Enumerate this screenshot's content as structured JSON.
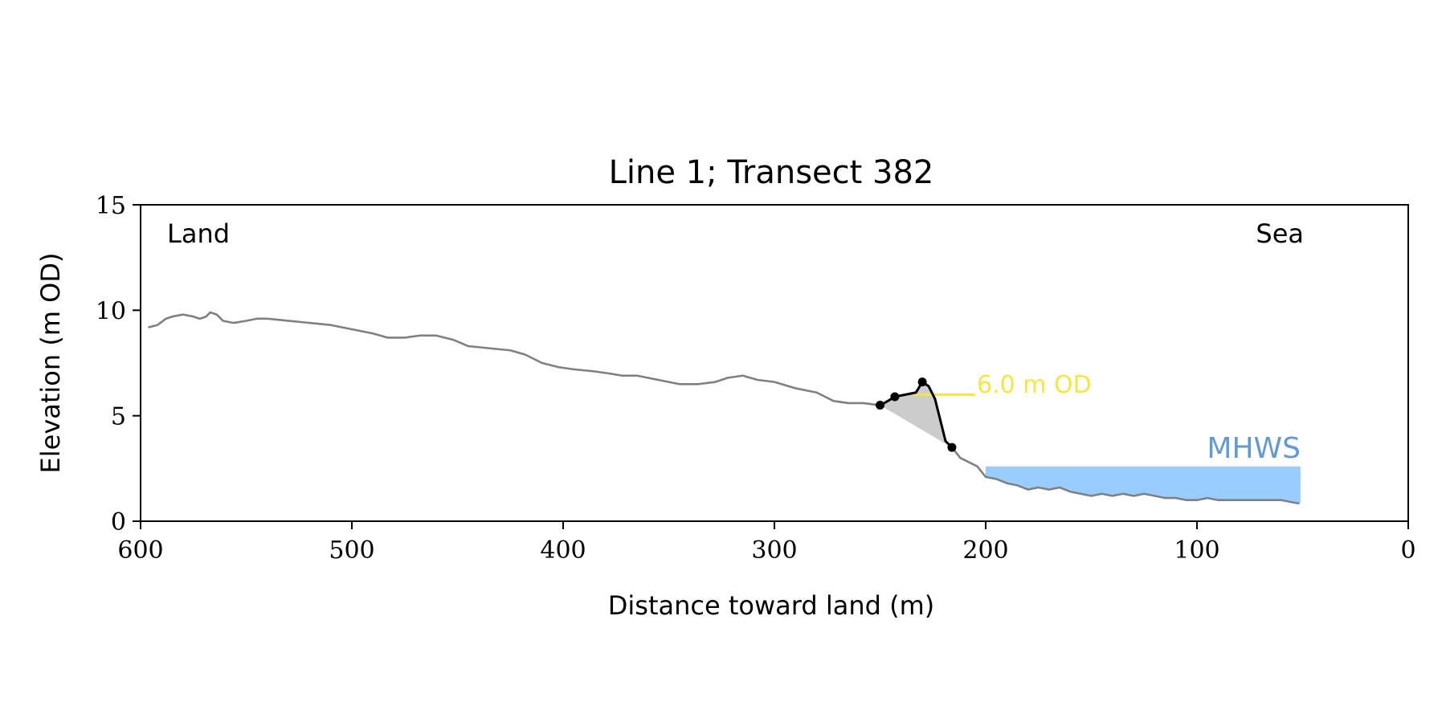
{
  "chart_data": {
    "type": "line",
    "title": "Line 1; Transect 382",
    "xlabel": "Distance toward land (m)",
    "ylabel": "Elevation (m OD)",
    "xlim": [
      600,
      0
    ],
    "ylim": [
      0,
      15
    ],
    "x_reversed": true,
    "xticks": [
      600,
      500,
      400,
      300,
      200,
      100,
      0
    ],
    "yticks": [
      0,
      5,
      10,
      15
    ],
    "grid": false,
    "corner_labels": {
      "left": "Land",
      "right": "Sea"
    },
    "colors": {
      "profile": "#808080",
      "feature": "#000000",
      "fill": "#cccccc",
      "od_line": "#f5e642",
      "water": "#99ccff",
      "mhws_text": "#6699cc"
    },
    "series": [
      {
        "points": [
          [
            596,
            9.2
          ],
          [
            592,
            9.3
          ],
          [
            588,
            9.6
          ],
          [
            585,
            9.7
          ],
          [
            580,
            9.8
          ],
          [
            575,
            9.7
          ],
          [
            572,
            9.6
          ],
          [
            569,
            9.7
          ],
          [
            567,
            9.9
          ],
          [
            564,
            9.8
          ],
          [
            561,
            9.5
          ],
          [
            556,
            9.4
          ],
          [
            550,
            9.5
          ],
          [
            545,
            9.6
          ],
          [
            540,
            9.6
          ],
          [
            530,
            9.5
          ],
          [
            520,
            9.4
          ],
          [
            510,
            9.3
          ],
          [
            500,
            9.1
          ],
          [
            490,
            8.9
          ],
          [
            483,
            8.7
          ],
          [
            475,
            8.7
          ],
          [
            468,
            8.8
          ],
          [
            460,
            8.8
          ],
          [
            452,
            8.6
          ],
          [
            445,
            8.3
          ],
          [
            435,
            8.2
          ],
          [
            425,
            8.1
          ],
          [
            418,
            7.9
          ],
          [
            410,
            7.5
          ],
          [
            402,
            7.3
          ],
          [
            395,
            7.2
          ],
          [
            385,
            7.1
          ],
          [
            378,
            7.0
          ],
          [
            372,
            6.9
          ],
          [
            365,
            6.9
          ],
          [
            355,
            6.7
          ],
          [
            345,
            6.5
          ],
          [
            336,
            6.5
          ],
          [
            328,
            6.6
          ],
          [
            322,
            6.8
          ],
          [
            315,
            6.9
          ],
          [
            308,
            6.7
          ],
          [
            300,
            6.6
          ],
          [
            290,
            6.3
          ],
          [
            280,
            6.1
          ],
          [
            272,
            5.7
          ],
          [
            265,
            5.6
          ],
          [
            258,
            5.6
          ],
          [
            250,
            5.5
          ]
        ]
      },
      {
        "points": [
          [
            216,
            3.5
          ],
          [
            212,
            3.0
          ],
          [
            208,
            2.8
          ],
          [
            204,
            2.6
          ],
          [
            200,
            2.1
          ],
          [
            195,
            2.0
          ],
          [
            190,
            1.8
          ],
          [
            185,
            1.7
          ],
          [
            180,
            1.5
          ],
          [
            175,
            1.6
          ],
          [
            170,
            1.5
          ],
          [
            165,
            1.6
          ],
          [
            160,
            1.4
          ],
          [
            155,
            1.3
          ],
          [
            150,
            1.2
          ],
          [
            145,
            1.3
          ],
          [
            140,
            1.2
          ],
          [
            135,
            1.3
          ],
          [
            130,
            1.2
          ],
          [
            125,
            1.3
          ],
          [
            120,
            1.2
          ],
          [
            115,
            1.1
          ],
          [
            110,
            1.1
          ],
          [
            105,
            1.0
          ],
          [
            100,
            1.0
          ],
          [
            95,
            1.1
          ],
          [
            90,
            1.0
          ],
          [
            85,
            1.0
          ],
          [
            80,
            1.0
          ],
          [
            75,
            1.0
          ],
          [
            70,
            1.0
          ],
          [
            65,
            1.0
          ],
          [
            60,
            1.0
          ],
          [
            55,
            0.9
          ],
          [
            52,
            0.85
          ]
        ]
      }
    ],
    "feature_curve": [
      [
        250,
        5.5
      ],
      [
        248,
        5.6
      ],
      [
        243,
        5.9
      ],
      [
        238,
        6.0
      ],
      [
        233,
        6.1
      ],
      [
        230,
        6.6
      ],
      [
        227,
        6.4
      ],
      [
        224,
        5.8
      ],
      [
        221,
        4.6
      ],
      [
        219,
        3.8
      ],
      [
        216,
        3.5
      ]
    ],
    "feature_points": [
      [
        250,
        5.5
      ],
      [
        243,
        5.9
      ],
      [
        230,
        6.6
      ],
      [
        216,
        3.5
      ]
    ],
    "shaded_area": {
      "lower_line": [
        [
          250,
          5.5
        ],
        [
          216,
          3.5
        ]
      ]
    },
    "od_line": {
      "value": 6.0,
      "x": [
        234,
        205
      ],
      "label": "6.0 m OD"
    },
    "mhws": {
      "label": "MHWS",
      "level": 2.6,
      "x": [
        200,
        51
      ]
    }
  }
}
